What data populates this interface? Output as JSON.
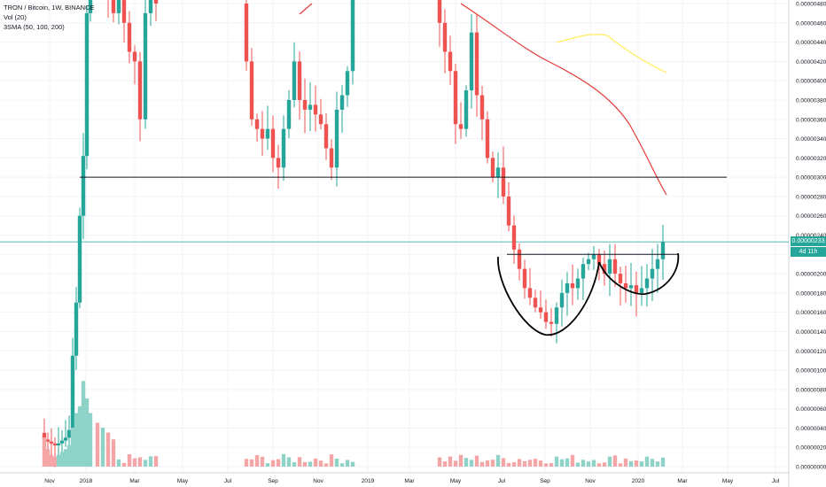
{
  "header": {
    "symbol_line": "TRON / Bitcoin, 1W, BINANCE",
    "volume_line": "Vol (20)",
    "sma_line": "3SMA (50, 100, 200)"
  },
  "price_axis": {
    "last_price_label": "0.00000233",
    "countdown_label": "4d 11h",
    "ticks": [
      "0.00000480",
      "0.00000460",
      "0.00000440",
      "0.00000420",
      "0.00000400",
      "0.00000380",
      "0.00000360",
      "0.00000340",
      "0.00000320",
      "0.00000300",
      "0.00000280",
      "0.00000260",
      "0.00000240",
      "0.00000220",
      "0.00000200",
      "0.00000180",
      "0.00000160",
      "0.00000140",
      "0.00000120",
      "0.00000100",
      "0.00000080",
      "0.00000060",
      "0.00000040",
      "0.00000020",
      "0.00000000"
    ]
  },
  "time_axis": {
    "labels": [
      "Nov",
      "2018",
      "Mar",
      "May",
      "Jul",
      "Sep",
      "Nov",
      "2019",
      "Mar",
      "May",
      "Jul",
      "Sep",
      "Nov",
      "2020",
      "Mar",
      "May",
      "Jul"
    ]
  },
  "colors": {
    "up": "#26a69a",
    "down": "#ef5350",
    "vol_up": "#8fd3c8",
    "vol_down": "#f4a6a6",
    "sma_red": "#e53935",
    "sma_yellow": "#ffee58",
    "last_price": "#26a69a",
    "countdown": "#26a69a"
  },
  "chart_data": {
    "type": "candlestick",
    "ylim": [
      0.0,
      4.9e-06
    ],
    "horizontal_lines": [
      3e-06,
      2.2e-06
    ],
    "last_price": 2.33e-06,
    "candles": [
      {
        "o": 3.5e-07,
        "h": 4.3e-07,
        "l": 2.8e-07,
        "c": 2.8e-07
      },
      {
        "o": 2.8e-07,
        "h": 3.2e-07,
        "l": 2.2e-07,
        "c": 2.6e-07
      },
      {
        "o": 2.6e-07,
        "h": 3e-07,
        "l": 2e-07,
        "c": 2.4e-07
      },
      {
        "o": 2.4e-07,
        "h": 2.9e-07,
        "l": 1.8e-07,
        "c": 2.7e-07
      },
      {
        "o": 2.7e-07,
        "h": 4e-07,
        "l": 2.5e-07,
        "c": 3.8e-07
      },
      {
        "o": 3.8e-07,
        "h": 1.25e-06,
        "l": 3.6e-07,
        "c": 1.15e-06
      },
      {
        "o": 1.15e-06,
        "h": 1.7e-06,
        "l": 1e-06,
        "c": 1.68e-06
      },
      {
        "o": 1.68e-06,
        "h": 1.9e-06,
        "l": 1.4e-06,
        "c": 1.82e-06
      },
      {
        "o": 1.82e-06,
        "h": 2.9e-06,
        "l": 1.65e-06,
        "c": 2.78e-06
      },
      {
        "o": 2.78e-06,
        "h": 3.3e-06,
        "l": 2.65e-06,
        "c": 3.22e-06
      },
      {
        "o": 3.22e-06,
        "h": 4.8e-06,
        "l": 3.05e-06,
        "c": 4.7e-06
      }
    ],
    "volume": [
      0.3,
      0.18,
      0.1,
      0.14,
      0.22,
      0.62,
      0.88,
      0.7,
      0.48,
      0.39,
      0.35
    ]
  }
}
